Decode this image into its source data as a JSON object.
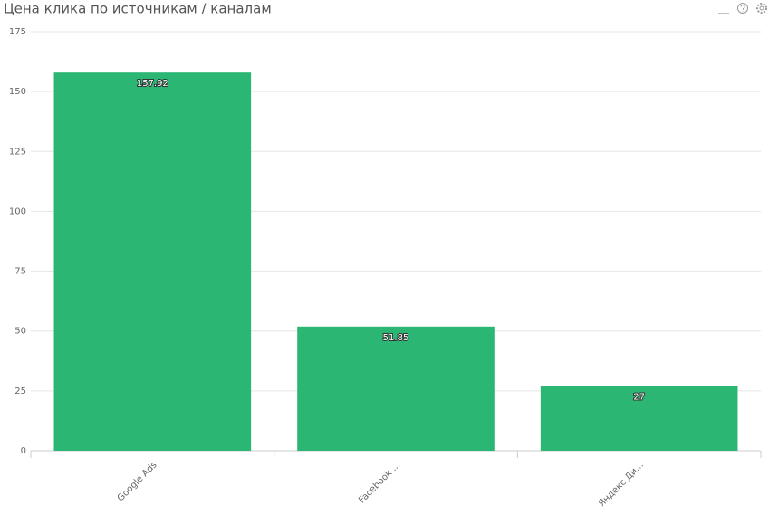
{
  "chart_data": {
    "type": "bar",
    "title": "Цена клика по источникам / каналам",
    "categories": [
      "Google Ads",
      "Facebook ...",
      "Яндекс Ди..."
    ],
    "values": [
      157.92,
      51.85,
      27
    ],
    "color": "#2bb673",
    "ylim": [
      0,
      175
    ],
    "yticks": [
      0,
      25,
      50,
      75,
      100,
      125,
      150,
      175
    ],
    "grid": true
  }
}
